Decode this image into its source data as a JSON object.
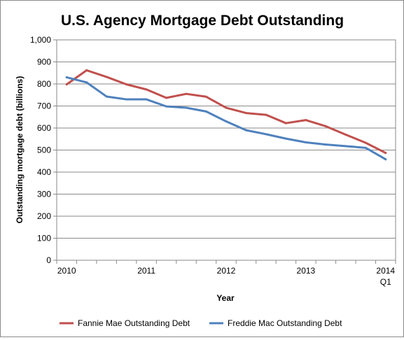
{
  "chart_data": {
    "type": "line",
    "title": "U.S. Agency Mortgage Debt Outstanding",
    "xlabel": "Year",
    "ylabel": "Outstanding mortgage debt (billions)",
    "ylim": [
      0,
      1000
    ],
    "yticks": [
      "0",
      "100",
      "200",
      "300",
      "400",
      "500",
      "600",
      "700",
      "800",
      "900",
      "1,000"
    ],
    "x_tick_labels": [
      {
        "label": "2010",
        "sub": "",
        "x": 0
      },
      {
        "label": "2011",
        "sub": "",
        "x": 4
      },
      {
        "label": "2012",
        "sub": "",
        "x": 8
      },
      {
        "label": "2013",
        "sub": "",
        "x": 12
      },
      {
        "label": "2014",
        "sub": "Q1",
        "x": 16
      }
    ],
    "x_range": [
      -0.5,
      16.5
    ],
    "x_count": 17,
    "grid": true,
    "legend_position": "bottom",
    "series": [
      {
        "name": "Fannie Mae Outstanding Debt",
        "color": "#c0504d",
        "values": [
          798,
          862,
          832,
          798,
          775,
          737,
          755,
          742,
          692,
          668,
          660,
          622,
          636,
          608,
          570,
          533,
          487
        ]
      },
      {
        "name": "Freddie Mac Outstanding Debt",
        "color": "#4f81bd",
        "values": [
          830,
          807,
          743,
          730,
          730,
          698,
          692,
          675,
          630,
          590,
          572,
          552,
          535,
          525,
          518,
          510,
          458
        ]
      }
    ]
  }
}
